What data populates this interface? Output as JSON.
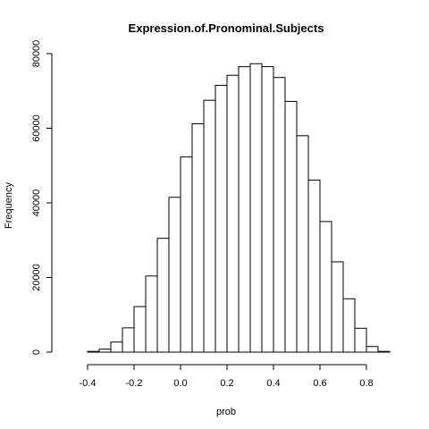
{
  "chart_data": {
    "type": "bar",
    "title": "Expression.of.Pronominal.Subjects",
    "xlabel": "prob",
    "ylabel": "Frequency",
    "xlim": [
      -0.5,
      0.9
    ],
    "ylim": [
      0,
      80000
    ],
    "x_ticks": [
      -0.4,
      -0.2,
      0.0,
      0.2,
      0.4,
      0.6,
      0.8
    ],
    "x_tick_labels": [
      "-0.4",
      "-0.2",
      "0.0",
      "0.2",
      "0.4",
      "0.6",
      "0.8"
    ],
    "y_ticks": [
      0,
      20000,
      40000,
      60000,
      80000
    ],
    "y_tick_labels": [
      "0",
      "20000",
      "40000",
      "60000",
      "80000"
    ],
    "bin_width": 0.05,
    "bin_starts": [
      -0.4,
      -0.35,
      -0.3,
      -0.25,
      -0.2,
      -0.15,
      -0.1,
      -0.05,
      0.0,
      0.05,
      0.1,
      0.15,
      0.2,
      0.25,
      0.3,
      0.35,
      0.4,
      0.45,
      0.5,
      0.55,
      0.6,
      0.65,
      0.7,
      0.75,
      0.8,
      0.85
    ],
    "values": [
      200,
      800,
      2700,
      6500,
      12200,
      20400,
      30500,
      41500,
      52300,
      61200,
      67500,
      71500,
      74200,
      76500,
      77300,
      76500,
      73600,
      67200,
      58000,
      46100,
      35000,
      24200,
      14300,
      6400,
      1500,
      200
    ],
    "grid": false,
    "legend": "none"
  }
}
